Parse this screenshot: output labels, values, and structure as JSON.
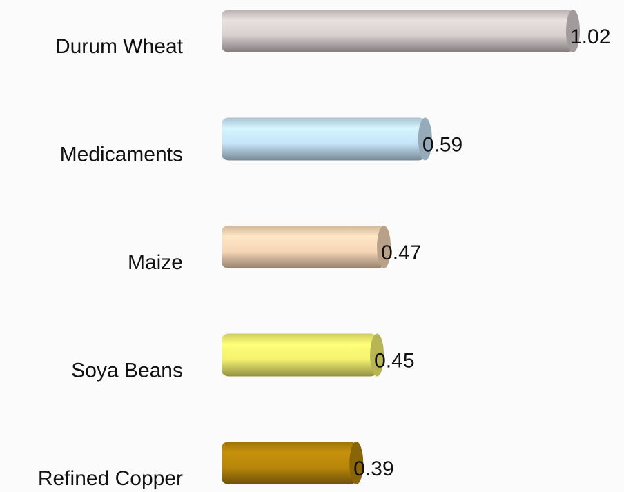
{
  "chart_data": {
    "type": "bar",
    "orientation": "horizontal",
    "categories": [
      "Durum Wheat",
      "Medicaments",
      "Maize",
      "Soya Beans",
      "Refined Copper"
    ],
    "values": [
      1.02,
      0.59,
      0.47,
      0.45,
      0.39
    ],
    "colors": [
      "#d8cfcf",
      "#c6e4f8",
      "#f6d6b6",
      "#f4f170",
      "#b8860b"
    ]
  }
}
